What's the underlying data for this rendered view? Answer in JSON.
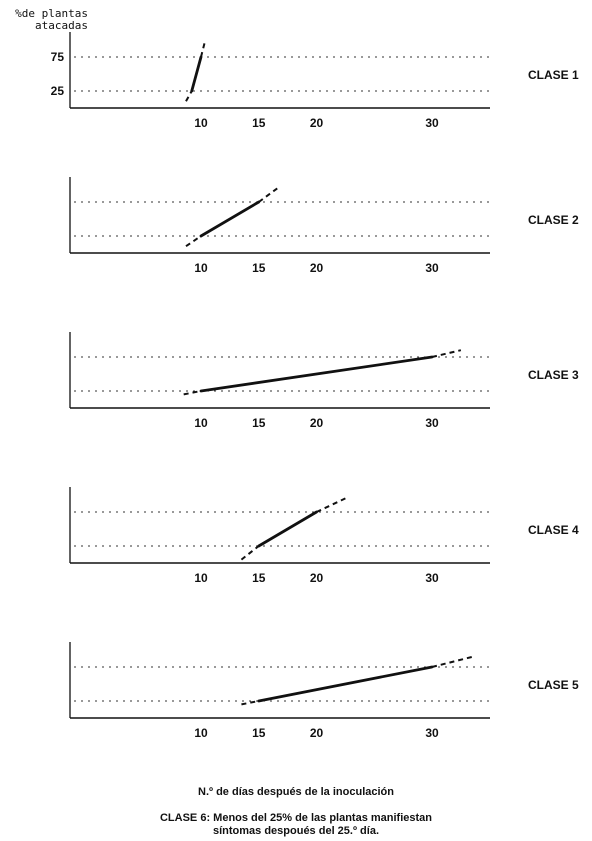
{
  "y_label_line1": "%de plantas",
  "y_label_line2": "atacadas",
  "x_label": "N.º de días después de la inoculación",
  "note_line1": "CLASE 6: Menos del 25% de las plantas manifiestan",
  "note_line2": "síntomas despoués del 25.º día.",
  "chart_data": [
    {
      "type": "line",
      "title": "CLASE 1",
      "y_ticks": [
        "75",
        "25"
      ],
      "x_ticks": [
        "10",
        "15",
        "20",
        "30"
      ],
      "reference_lines": [
        25,
        75
      ],
      "segment": {
        "x": [
          9.2,
          10.0
        ],
        "y": [
          25,
          75
        ]
      },
      "extension_start": {
        "x": 8.7,
        "y": 10
      },
      "extension_end": {
        "x": 10.3,
        "y": 95
      }
    },
    {
      "type": "line",
      "title": "CLASE 2",
      "y_ticks": [],
      "x_ticks": [
        "10",
        "15",
        "20",
        "30"
      ],
      "reference_lines": [
        25,
        75
      ],
      "segment": {
        "x": [
          10.0,
          15.0
        ],
        "y": [
          25,
          75
        ]
      },
      "extension_start": {
        "x": 8.7,
        "y": 10
      },
      "extension_end": {
        "x": 16.6,
        "y": 95
      }
    },
    {
      "type": "line",
      "title": "CLASE 3",
      "y_ticks": [],
      "x_ticks": [
        "10",
        "15",
        "20",
        "30"
      ],
      "reference_lines": [
        25,
        75
      ],
      "segment": {
        "x": [
          10.0,
          30.0
        ],
        "y": [
          25,
          75
        ]
      },
      "extension_start": {
        "x": 8.5,
        "y": 20
      },
      "extension_end": {
        "x": 32.5,
        "y": 85
      }
    },
    {
      "type": "line",
      "title": "CLASE 4",
      "y_ticks": [],
      "x_ticks": [
        "10",
        "15",
        "20",
        "30"
      ],
      "reference_lines": [
        25,
        75
      ],
      "segment": {
        "x": [
          15.0,
          20.0
        ],
        "y": [
          25,
          75
        ]
      },
      "extension_start": {
        "x": 13.5,
        "y": 5
      },
      "extension_end": {
        "x": 22.5,
        "y": 95
      }
    },
    {
      "type": "line",
      "title": "CLASE 5",
      "y_ticks": [],
      "x_ticks": [
        "10",
        "15",
        "20",
        "30"
      ],
      "reference_lines": [
        25,
        75
      ],
      "segment": {
        "x": [
          15.0,
          30.0
        ],
        "y": [
          25,
          75
        ]
      },
      "extension_start": {
        "x": 13.5,
        "y": 20
      },
      "extension_end": {
        "x": 33.5,
        "y": 90
      }
    }
  ]
}
